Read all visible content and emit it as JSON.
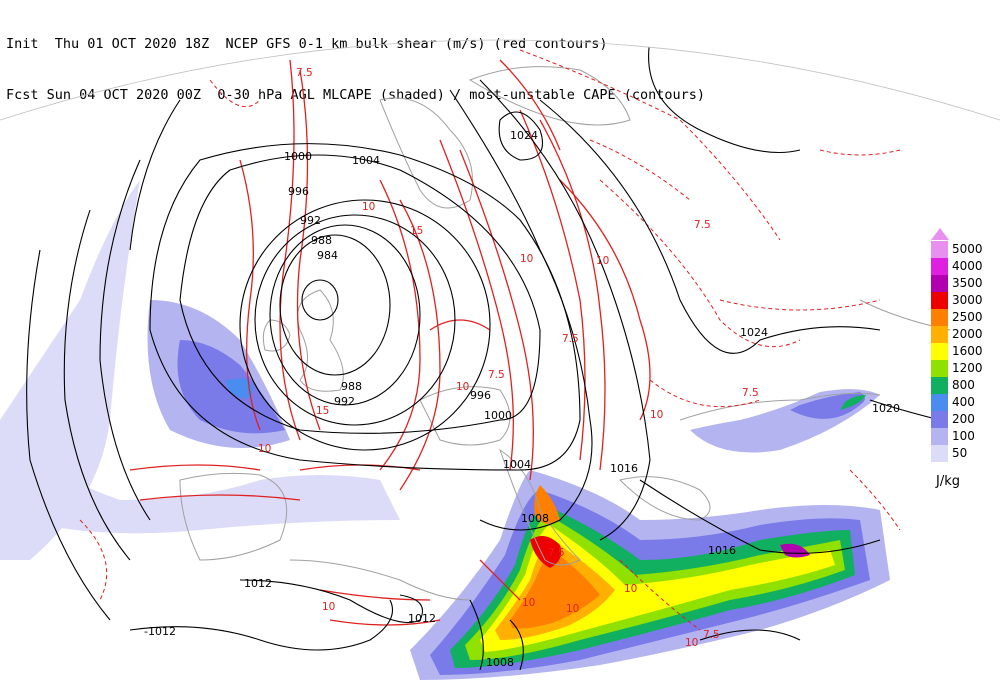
{
  "header": {
    "line1": "Init  Thu 01 OCT 2020 18Z  NCEP GFS 0-1 km bulk shear (m/s) (red contours)",
    "line2": "Fcst Sun 04 OCT 2020 00Z  0-30 hPa AGL MLCAPE (shaded) / most-unstable CAPE (contours)"
  },
  "colors": {
    "shear_contour": "#e02020",
    "pressure_contour": "#000000",
    "coastline": "#a0a0a0"
  },
  "legend": {
    "units": "J/kg",
    "levels": [
      {
        "label": "5000",
        "color": "#e890f0"
      },
      {
        "label": "4000",
        "color": "#e020e0"
      },
      {
        "label": "3500",
        "color": "#b000b0"
      },
      {
        "label": "3000",
        "color": "#ee0000"
      },
      {
        "label": "2500",
        "color": "#ff8000"
      },
      {
        "label": "2000",
        "color": "#ffb000"
      },
      {
        "label": "1600",
        "color": "#ffff00"
      },
      {
        "label": "1200",
        "color": "#90e000"
      },
      {
        "label": "800",
        "color": "#10b060"
      },
      {
        "label": "400",
        "color": "#4a8cf0"
      },
      {
        "label": "200",
        "color": "#7a7ae8"
      },
      {
        "label": "100",
        "color": "#b4b4f0"
      },
      {
        "label": "50",
        "color": "#dcdcf8"
      }
    ]
  },
  "pressure_labels": {
    "p1000": "1000",
    "p1004": "1004",
    "p996": "996",
    "p992": "992",
    "p988": "988",
    "p984": "984",
    "p988b": "988",
    "p992b": "992",
    "p996b": "996",
    "p1000b": "1000",
    "p1004b": "1004",
    "p1008": "1008",
    "p1012": "1012",
    "p1012b": "1012",
    "p1012c": "-1012",
    "p1008b": "1008",
    "p1016": "1016",
    "p1016b": "1016",
    "p1020": "1020",
    "p1024": "1024",
    "p1024b": "1024"
  },
  "shear_labels": {
    "s1": "7.5",
    "s2": "10",
    "s3": "15",
    "s4": "10",
    "s5": "7.5",
    "s6": "10",
    "s7": "7.5",
    "s8": "10",
    "s9": "15",
    "s10": "10",
    "s11": "7.5",
    "s12": "10",
    "s13": "7.5",
    "s14": "10",
    "s15": "10",
    "s16": "7.5",
    "s17": "10",
    "s18": "10",
    "s19": "7.5",
    "s20": "10"
  }
}
